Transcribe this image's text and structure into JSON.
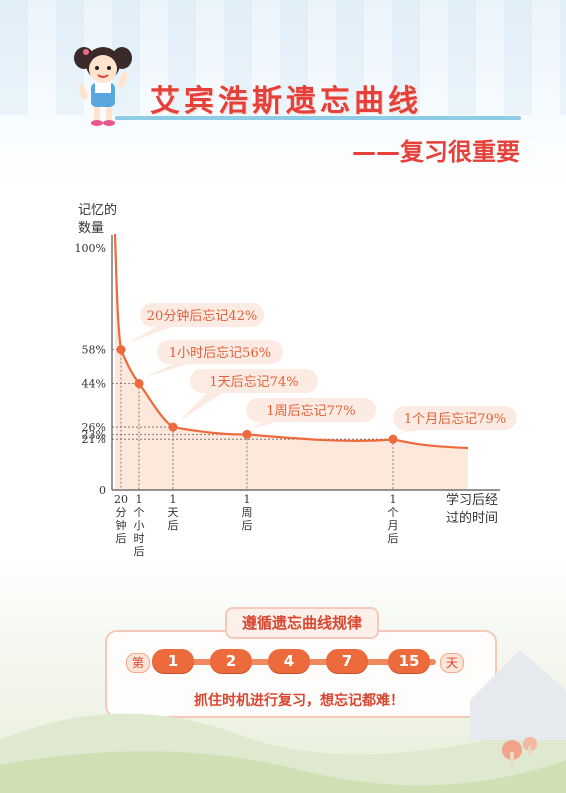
{
  "header": {
    "title": "艾宾浩斯遗忘曲线",
    "subtitle": "——复习很重要"
  },
  "chart_data": {
    "type": "line",
    "title": "",
    "ylabel_lines": [
      "记忆的",
      "数量"
    ],
    "xlabel_lines": [
      "学习后经",
      "过的时间"
    ],
    "y_ticks": [
      "100%",
      "58%",
      "44%",
      "26%",
      "23%",
      "21%",
      "0"
    ],
    "x_ticks": [
      [
        "20",
        "分",
        "钟",
        "后"
      ],
      [
        "1",
        "个",
        "小",
        "时",
        "后"
      ],
      [
        "1",
        "天",
        "后"
      ],
      [
        "1",
        "周",
        "后"
      ],
      [
        "1",
        "个",
        "月",
        "后"
      ]
    ],
    "points": [
      {
        "x": "20分钟后",
        "retention": 58,
        "label": "20分钟后忘记42%"
      },
      {
        "x": "1个小时后",
        "retention": 44,
        "label": "1小时后忘记56%"
      },
      {
        "x": "1天后",
        "retention": 26,
        "label": "1天后忘记74%"
      },
      {
        "x": "1周后",
        "retention": 23,
        "label": "1周后忘记77%"
      },
      {
        "x": "1个月后",
        "retention": 21,
        "label": "1个月后忘记79%"
      }
    ],
    "ylim": [
      0,
      100
    ],
    "colors": {
      "curve": "#ec6a3b",
      "fill": "#fde0cf",
      "bubble": "#fcebe2",
      "label": "#e5603a"
    }
  },
  "review_rule": {
    "heading": "遵循遗忘曲线规律",
    "prefix": "第",
    "days": [
      "1",
      "2",
      "4",
      "7",
      "15"
    ],
    "suffix": "天",
    "footer": "抓住时机进行复习，想忘记都难！"
  }
}
